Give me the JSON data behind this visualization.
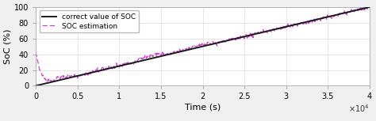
{
  "title": "",
  "xlabel": "Time (s)",
  "ylabel": "SoC (%)",
  "xlim": [
    0,
    40000
  ],
  "ylim": [
    0,
    100
  ],
  "xticks": [
    0,
    5000,
    10000,
    15000,
    20000,
    25000,
    30000,
    35000,
    40000
  ],
  "xtick_labels": [
    "0",
    "0.5",
    "1",
    "1.5",
    "2",
    "2.5",
    "3",
    "3.5",
    "4"
  ],
  "yticks": [
    0,
    20,
    40,
    60,
    80,
    100
  ],
  "legend": [
    "correct value of SOC",
    "SOC estimation"
  ],
  "line_color_true": "#1a1a1a",
  "line_color_est": "#cc44cc",
  "background_color": "#f8f8f8",
  "grid_color": "#e0e0e0",
  "figsize": [
    4.74,
    1.53
  ],
  "dpi": 100
}
